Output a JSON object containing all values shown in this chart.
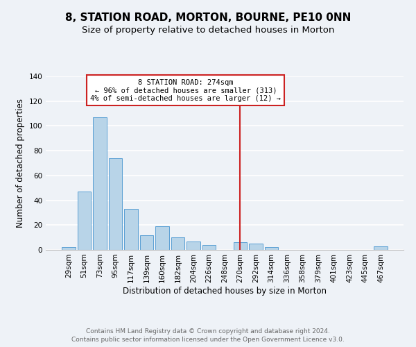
{
  "title": "8, STATION ROAD, MORTON, BOURNE, PE10 0NN",
  "subtitle": "Size of property relative to detached houses in Morton",
  "xlabel": "Distribution of detached houses by size in Morton",
  "ylabel": "Number of detached properties",
  "bar_color": "#b8d4e8",
  "bar_edge_color": "#5a9fd4",
  "categories": [
    "29sqm",
    "51sqm",
    "73sqm",
    "95sqm",
    "117sqm",
    "139sqm",
    "160sqm",
    "182sqm",
    "204sqm",
    "226sqm",
    "248sqm",
    "270sqm",
    "292sqm",
    "314sqm",
    "336sqm",
    "358sqm",
    "379sqm",
    "401sqm",
    "423sqm",
    "445sqm",
    "467sqm"
  ],
  "values": [
    2,
    47,
    107,
    74,
    33,
    12,
    19,
    10,
    7,
    4,
    0,
    6,
    5,
    2,
    0,
    0,
    0,
    0,
    0,
    0,
    3
  ],
  "ylim": [
    0,
    140
  ],
  "yticks": [
    0,
    20,
    40,
    60,
    80,
    100,
    120,
    140
  ],
  "vline_x_index": 11,
  "vline_color": "#cc2222",
  "annotation_title": "8 STATION ROAD: 274sqm",
  "annotation_line1": "← 96% of detached houses are smaller (313)",
  "annotation_line2": "4% of semi-detached houses are larger (12) →",
  "annotation_box_color": "#ffffff",
  "annotation_box_edge_color": "#cc2222",
  "footer1": "Contains HM Land Registry data © Crown copyright and database right 2024.",
  "footer2": "Contains public sector information licensed under the Open Government Licence v3.0.",
  "background_color": "#eef2f7",
  "grid_color": "#ffffff",
  "title_fontsize": 11,
  "subtitle_fontsize": 9.5,
  "axis_label_fontsize": 8.5,
  "tick_fontsize": 7.5,
  "footer_fontsize": 6.5,
  "annotation_fontsize": 7.5
}
